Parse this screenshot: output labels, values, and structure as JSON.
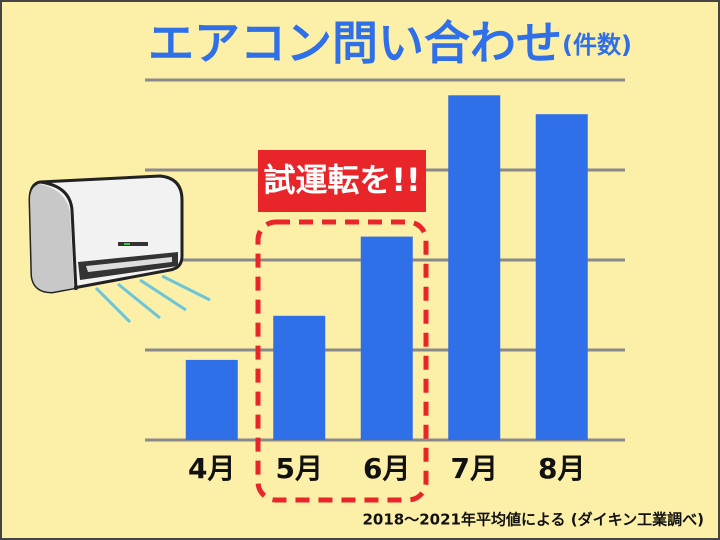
{
  "chart_data": {
    "type": "bar",
    "title": "エアコン問い合わせ",
    "subtitle": "(件数)",
    "categories": [
      "4月",
      "5月",
      "6月",
      "7月",
      "8月"
    ],
    "values": [
      0.89,
      1.38,
      2.26,
      3.83,
      3.62
    ],
    "color": "#2f6fe8",
    "ylim": [
      0,
      4
    ],
    "yticks": [
      0,
      1,
      2,
      3,
      4
    ],
    "grid": true,
    "annotation": "試運転を!!",
    "note": "2018～2021年平均値による (ダイキン工業調べ)"
  }
}
